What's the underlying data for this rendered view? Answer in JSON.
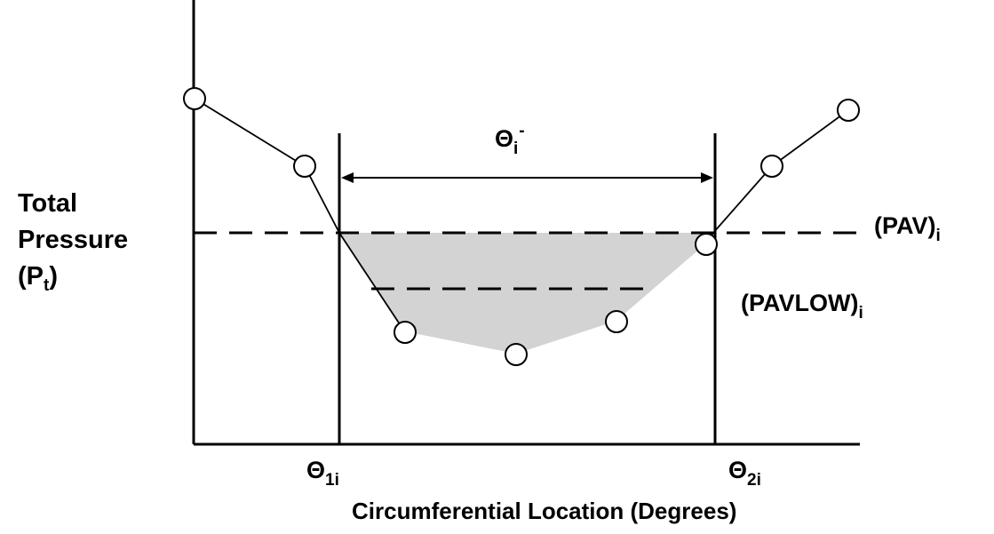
{
  "y_axis_label": {
    "line1": "Total",
    "line2": "Pressure",
    "line3_main": "(P",
    "line3_sub": "t",
    "line3_close": ")"
  },
  "x_axis_label": "Circumferential Location (Degrees)",
  "theta_1": {
    "symbol": "Θ",
    "subscript": "1i"
  },
  "theta_2": {
    "symbol": "Θ",
    "subscript": "2i"
  },
  "theta_span": {
    "symbol": "Θ",
    "subscript": "i",
    "superscript": "-"
  },
  "pav_label": {
    "main": "(PAV)",
    "subscript": "i"
  },
  "pavlow_label": {
    "main": "(PAVLOW)",
    "subscript": "i"
  },
  "colors": {
    "line": "#000000",
    "shaded_region": "#d3d3d3",
    "marker_fill": "#ffffff"
  }
}
